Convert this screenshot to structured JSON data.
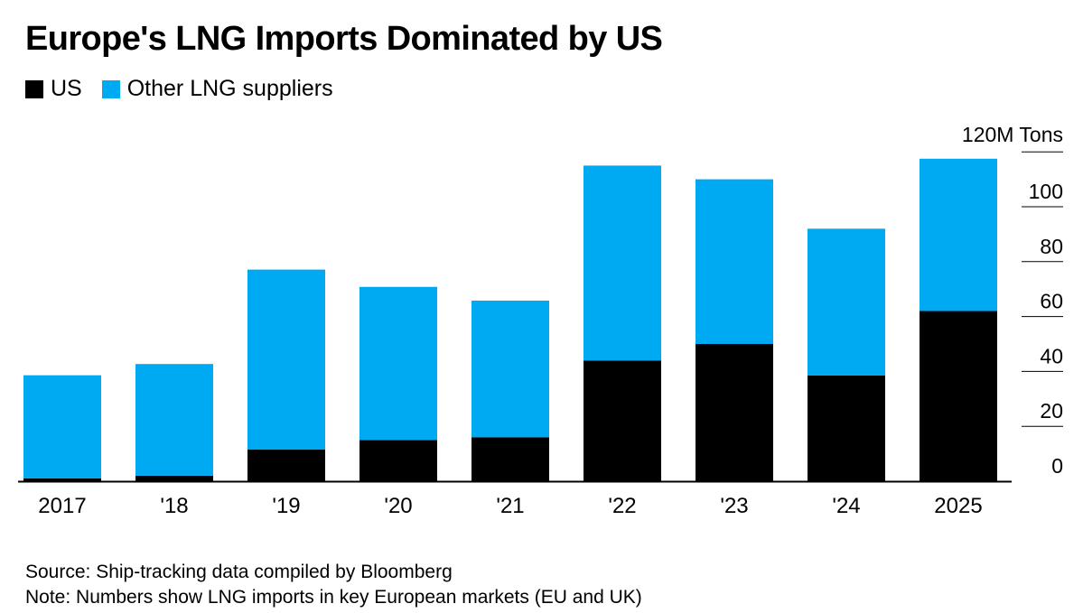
{
  "chart_data": {
    "type": "bar",
    "stacked": true,
    "title": "Europe's LNG Imports Dominated by US",
    "unit_label": "120M Tons",
    "categories": [
      "2017",
      "'18",
      "'19",
      "'20",
      "'21",
      "'22",
      "'23",
      "'24",
      "2025"
    ],
    "series": [
      {
        "name": "US",
        "color": "#000000",
        "values": [
          1.0,
          2.0,
          11.5,
          15,
          16,
          44,
          50,
          38.5,
          62
        ]
      },
      {
        "name": "Other LNG suppliers",
        "color": "#00aaf2",
        "values": [
          37.6,
          40.7,
          65.6,
          55.8,
          49.8,
          71,
          60,
          53.5,
          55.5
        ]
      }
    ],
    "ylim": [
      0,
      120
    ],
    "yticks": [
      0,
      20,
      40,
      60,
      80,
      100
    ],
    "ytick_labels": [
      "0",
      "20",
      "40",
      "60",
      "80",
      "100"
    ],
    "xlabel": "",
    "ylabel": "",
    "legend_position": "top-left"
  },
  "notes": {
    "source": "Source: Ship-tracking data compiled by Bloomberg",
    "note": "Note: Numbers show LNG imports in key European markets (EU and UK)"
  }
}
